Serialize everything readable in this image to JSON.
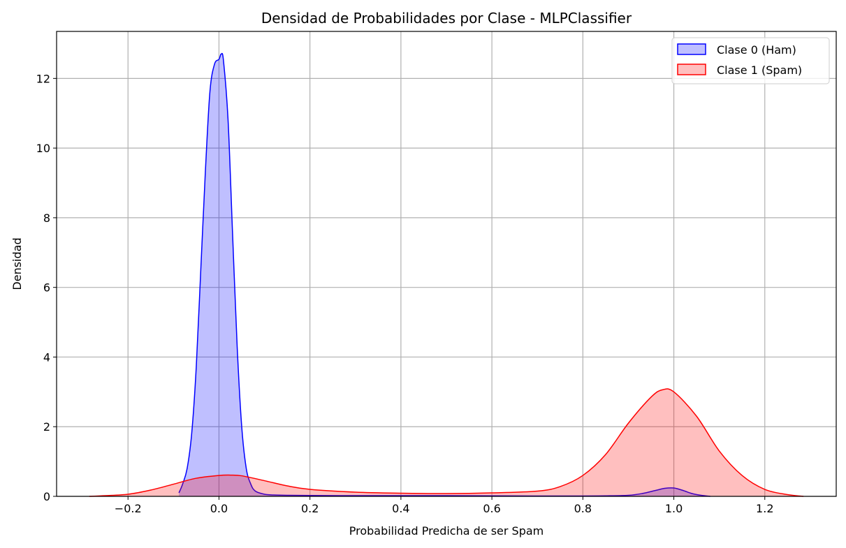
{
  "chart_data": {
    "type": "area",
    "title": "Densidad de Probabilidades por Clase - MLPClassifier",
    "xlabel": "Probabilidad Predicha de ser Spam",
    "ylabel": "Densidad",
    "xlim": [
      -0.357,
      1.357
    ],
    "ylim": [
      0,
      13.35
    ],
    "xticks": [
      -0.2,
      0.0,
      0.2,
      0.4,
      0.6,
      0.8,
      1.0,
      1.2
    ],
    "xtick_labels": [
      "−0.2",
      "0.0",
      "0.2",
      "0.4",
      "0.6",
      "0.8",
      "1.0",
      "1.2"
    ],
    "yticks": [
      0,
      2,
      4,
      6,
      8,
      10,
      12
    ],
    "ytick_labels": [
      "0",
      "2",
      "4",
      "6",
      "8",
      "10",
      "12"
    ],
    "grid": true,
    "legend_position": "top-right",
    "series": [
      {
        "name": "Clase 0 (Ham)",
        "color": "#0000ff",
        "fill": "rgba(0,0,255,0.25)",
        "x": [
          -0.088,
          -0.08,
          -0.07,
          -0.06,
          -0.05,
          -0.04,
          -0.03,
          -0.02,
          -0.01,
          0.0,
          0.005,
          0.01,
          0.02,
          0.03,
          0.04,
          0.05,
          0.06,
          0.07,
          0.08,
          0.1,
          0.12,
          0.15,
          0.2,
          0.3,
          0.4,
          0.5,
          0.6,
          0.7,
          0.8,
          0.85,
          0.9,
          0.93,
          0.96,
          0.98,
          1.0,
          1.02,
          1.04,
          1.06,
          1.08
        ],
        "y": [
          0.1,
          0.35,
          0.8,
          1.8,
          3.7,
          6.5,
          9.3,
          11.6,
          12.4,
          12.55,
          12.7,
          12.5,
          10.8,
          7.5,
          4.3,
          2.0,
          0.8,
          0.35,
          0.15,
          0.06,
          0.04,
          0.03,
          0.025,
          0.02,
          0.02,
          0.02,
          0.015,
          0.01,
          0.01,
          0.015,
          0.03,
          0.08,
          0.17,
          0.23,
          0.24,
          0.17,
          0.08,
          0.03,
          0.0
        ]
      },
      {
        "name": "Clase 1 (Spam)",
        "color": "#ff0000",
        "fill": "rgba(255,0,0,0.25)",
        "x": [
          -0.285,
          -0.25,
          -0.2,
          -0.15,
          -0.1,
          -0.05,
          0.0,
          0.025,
          0.05,
          0.1,
          0.15,
          0.2,
          0.3,
          0.4,
          0.5,
          0.6,
          0.7,
          0.75,
          0.8,
          0.85,
          0.9,
          0.95,
          0.975,
          1.0,
          1.05,
          1.1,
          1.15,
          1.2,
          1.25,
          1.285
        ],
        "y": [
          0.0,
          0.02,
          0.06,
          0.18,
          0.35,
          0.52,
          0.6,
          0.61,
          0.59,
          0.45,
          0.3,
          0.2,
          0.12,
          0.09,
          0.08,
          0.1,
          0.15,
          0.28,
          0.6,
          1.2,
          2.1,
          2.85,
          3.06,
          3.0,
          2.3,
          1.3,
          0.6,
          0.2,
          0.05,
          0.0
        ]
      }
    ]
  }
}
